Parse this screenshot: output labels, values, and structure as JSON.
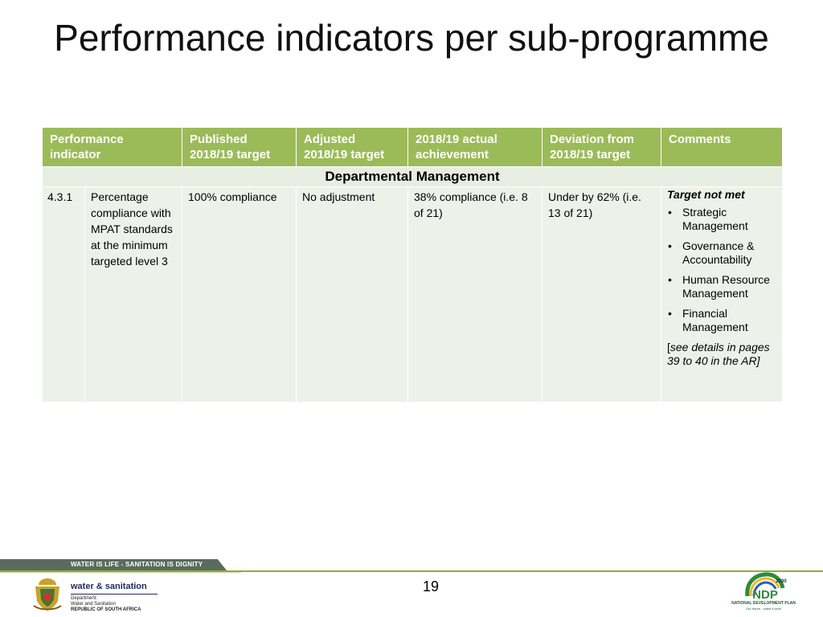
{
  "slide": {
    "title": "Performance indicators per sub-programme",
    "page_number": "19"
  },
  "table": {
    "headers": [
      "Performance indicator",
      "Published 2018/19 target",
      "Adjusted 2018/19 target",
      "2018/19 actual achievement",
      "Deviation from 2018/19 target",
      "Comments"
    ],
    "section_label": "Departmental Management",
    "row": {
      "id": "4.3.1",
      "indicator": "Percentage compliance with MPAT standards at the minimum targeted level 3",
      "published_target": "100% compliance",
      "adjusted_target": "No adjustment",
      "actual_achievement": "38% compliance (i.e. 8 of 21)",
      "deviation": "Under by 62% (i.e. 13 of 21)",
      "comments": {
        "heading": "Target not met",
        "items": [
          "Strategic Management",
          "Governance & Accountability",
          "Human Resource Management",
          "Financial Management"
        ],
        "note_open": "[",
        "note_italic": "see details in pages 39 to 40 in the AR]"
      }
    }
  },
  "footer": {
    "band_text": "WATER IS LIFE - SANITATION IS DIGNITY",
    "logo_main": "water & sanitation",
    "logo_sub": [
      "Department:",
      "Water and Sanitation"
    ],
    "logo_country": "REPUBLIC OF SOUTH AFRICA",
    "ndp_year": "2030",
    "ndp_mark": "NDP",
    "ndp_label": "NATIONAL DEVELOPMENT PLAN",
    "ndp_tagline": "Our future - make it work"
  },
  "colors": {
    "header_green": "#9bbb59",
    "section_bg": "#e8ede1",
    "row_bg": "#eef1ea",
    "band_grey": "#5a6b5e",
    "band_accent": "#8fae3c"
  }
}
